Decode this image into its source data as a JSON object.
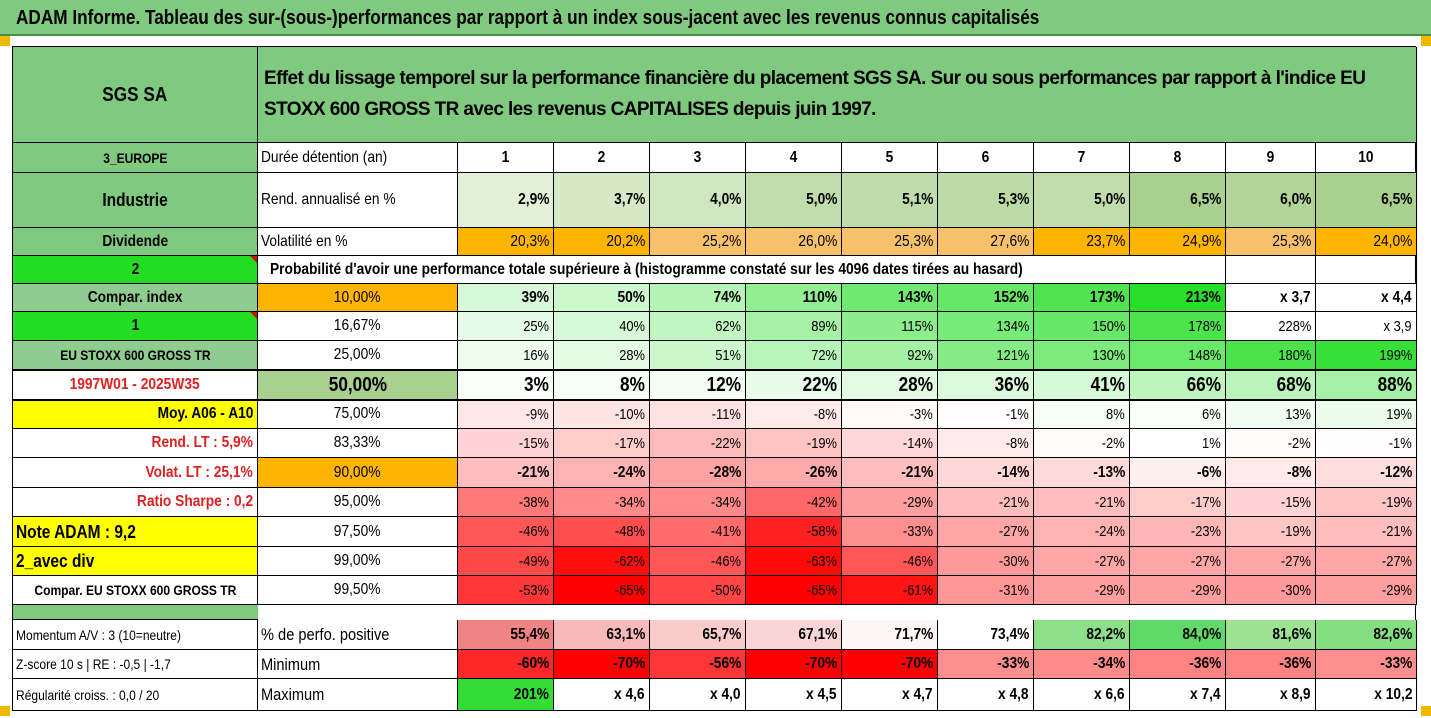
{
  "title": "ADAM Informe. Tableau des sur-(sous-)performances par rapport à un index sous-jacent avec les revenus connus capitalisés",
  "header": {
    "company": "SGS SA",
    "description": "Effet du lissage temporel sur la performance financière du placement SGS SA. Sur ou sous performances par rapport à l'indice EU STOXX 600 GROSS TR avec les revenus CAPITALISES depuis juin 1997."
  },
  "sidebar": {
    "region": "3_EUROPE",
    "sector": "Industrie",
    "dividend_label": "Dividende",
    "dividend_value": "2",
    "compar_index_label": "Compar. index",
    "compar_index_value": "1",
    "index_name": "EU STOXX 600 GROSS TR",
    "period": "1997W01 - 2025W35",
    "avg_label": "Moy. A06 - A10",
    "rend_lt": "Rend. LT :   5,9%",
    "volat_lt": "Volat. LT :   25,1%",
    "sharpe": "Ratio Sharpe :   0,2",
    "note_adam": "Note ADAM : 9,2",
    "avec_div": "2_avec div",
    "compar_footer": "Compar. EU STOXX 600 GROSS TR"
  },
  "table": {
    "duration_label": "Durée détention (an)",
    "years": [
      "1",
      "2",
      "3",
      "4",
      "5",
      "6",
      "7",
      "8",
      "9",
      "10"
    ],
    "rend_label": "Rend. annualisé en %",
    "rend": [
      "2,9%",
      "3,7%",
      "4,0%",
      "5,0%",
      "5,1%",
      "5,3%",
      "5,0%",
      "6,5%",
      "6,0%",
      "6,5%"
    ],
    "vol_label": "Volatilité en %",
    "vol": [
      "20,3%",
      "20,2%",
      "25,2%",
      "26,0%",
      "25,3%",
      "27,6%",
      "23,7%",
      "24,9%",
      "25,3%",
      "24,0%"
    ],
    "prob_label": "Probabilité d'avoir une performance totale supérieure à (histogramme constaté sur les 4096 dates tirées au hasard)",
    "quantiles": [
      {
        "p": "10,00%",
        "v": [
          "39%",
          "50%",
          "74%",
          "110%",
          "143%",
          "152%",
          "173%",
          "213%",
          "x 3,7",
          "x 4,4"
        ]
      },
      {
        "p": "16,67%",
        "v": [
          "25%",
          "40%",
          "62%",
          "89%",
          "115%",
          "134%",
          "150%",
          "178%",
          "228%",
          "x 3,9"
        ]
      },
      {
        "p": "25,00%",
        "v": [
          "16%",
          "28%",
          "51%",
          "72%",
          "92%",
          "121%",
          "130%",
          "148%",
          "180%",
          "199%"
        ]
      },
      {
        "p": "50,00%",
        "v": [
          "3%",
          "8%",
          "12%",
          "22%",
          "28%",
          "36%",
          "41%",
          "66%",
          "68%",
          "88%"
        ]
      },
      {
        "p": "75,00%",
        "v": [
          "-9%",
          "-10%",
          "-11%",
          "-8%",
          "-3%",
          "-1%",
          "8%",
          "6%",
          "13%",
          "19%"
        ]
      },
      {
        "p": "83,33%",
        "v": [
          "-15%",
          "-17%",
          "-22%",
          "-19%",
          "-14%",
          "-8%",
          "-2%",
          "1%",
          "-2%",
          "-1%"
        ]
      },
      {
        "p": "90,00%",
        "v": [
          "-21%",
          "-24%",
          "-28%",
          "-26%",
          "-21%",
          "-14%",
          "-13%",
          "-6%",
          "-8%",
          "-12%"
        ]
      },
      {
        "p": "95,00%",
        "v": [
          "-38%",
          "-34%",
          "-34%",
          "-42%",
          "-29%",
          "-21%",
          "-21%",
          "-17%",
          "-15%",
          "-19%"
        ]
      },
      {
        "p": "97,50%",
        "v": [
          "-46%",
          "-48%",
          "-41%",
          "-58%",
          "-33%",
          "-27%",
          "-24%",
          "-23%",
          "-19%",
          "-21%"
        ]
      },
      {
        "p": "99,00%",
        "v": [
          "-49%",
          "-62%",
          "-46%",
          "-63%",
          "-46%",
          "-30%",
          "-27%",
          "-27%",
          "-27%",
          "-27%"
        ]
      },
      {
        "p": "99,50%",
        "v": [
          "-53%",
          "-65%",
          "-50%",
          "-65%",
          "-61%",
          "-31%",
          "-29%",
          "-29%",
          "-30%",
          "-29%"
        ]
      }
    ],
    "bottom": [
      {
        "side": "Momentum A/V : 3 (10=neutre)",
        "label": "% de perfo. positive",
        "v": [
          "55,4%",
          "63,1%",
          "65,7%",
          "67,1%",
          "71,7%",
          "73,4%",
          "82,2%",
          "84,0%",
          "81,6%",
          "82,6%"
        ]
      },
      {
        "side": "Z-score 10 s  |  RE : -0,5  |  -1,7",
        "label": "Minimum",
        "v": [
          "-60%",
          "-70%",
          "-56%",
          "-70%",
          "-70%",
          "-33%",
          "-34%",
          "-36%",
          "-36%",
          "-33%"
        ]
      },
      {
        "side": "Régularité croiss. : 0,0 / 20",
        "label": "Maximum",
        "v": [
          "201%",
          "x 4,6",
          "x 4,0",
          "x 4,5",
          "x 4,7",
          "x 4,8",
          "x 6,6",
          "x 7,4",
          "x 8,9",
          "x 10,2"
        ]
      }
    ]
  },
  "colors": {
    "header_green": "#7fca7f",
    "bright_green": "#22dd22",
    "orange": "#ffb400",
    "yellow": "#ffff00",
    "red_strong": "#ff0000",
    "pale_green": "#c6e0b4"
  }
}
